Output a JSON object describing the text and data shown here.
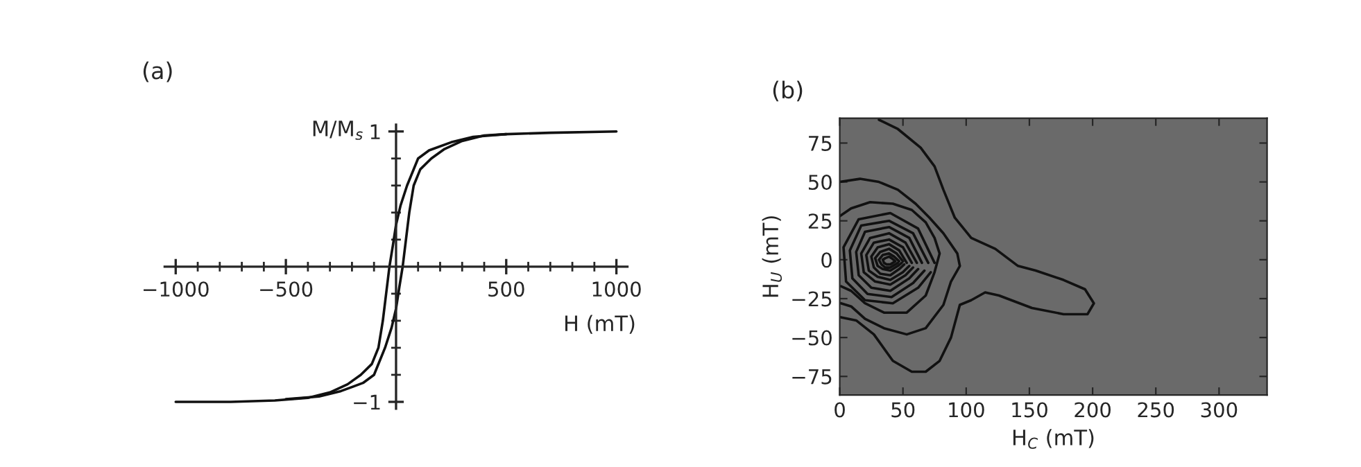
{
  "chart_data": [
    {
      "type": "line",
      "title": "(a)",
      "xlabel": "H (mT)",
      "ylabel": "M/M$_{s}$",
      "xlim": [
        -1050,
        1050
      ],
      "ylim": [
        -1.05,
        1.05
      ],
      "xticks": [
        {
          "value": -1000,
          "label": "−1000"
        },
        {
          "value": -900,
          "label": null
        },
        {
          "value": -800,
          "label": null
        },
        {
          "value": -700,
          "label": null
        },
        {
          "value": -600,
          "label": null
        },
        {
          "value": -500,
          "label": "−500"
        },
        {
          "value": -400,
          "label": null
        },
        {
          "value": -300,
          "label": null
        },
        {
          "value": -200,
          "label": null
        },
        {
          "value": -100,
          "label": null
        },
        {
          "value": 100,
          "label": null
        },
        {
          "value": 200,
          "label": null
        },
        {
          "value": 300,
          "label": null
        },
        {
          "value": 400,
          "label": null
        },
        500,
        {
          "value": 600,
          "label": null
        },
        {
          "value": 700,
          "label": null
        },
        {
          "value": 800,
          "label": null
        },
        {
          "value": 900,
          "label": null
        },
        1000
      ],
      "yticks": [
        {
          "value": -1,
          "label": "−1"
        },
        {
          "value": -0.8,
          "label": null
        },
        {
          "value": -0.6,
          "label": null
        },
        {
          "value": -0.4,
          "label": null
        },
        {
          "value": -0.2,
          "label": null
        },
        {
          "value": 0.2,
          "label": null
        },
        {
          "value": 0.4,
          "label": null
        },
        {
          "value": 0.6,
          "label": null
        },
        {
          "value": 0.8,
          "label": null
        },
        1
      ],
      "grid": false,
      "legend": false,
      "series": [
        {
          "color": "#111111",
          "x": [
            1000,
            700,
            500,
            350,
            250,
            150,
            100,
            50,
            20,
            0,
            -15,
            -30,
            -45,
            -60,
            -80,
            -110,
            -160,
            -220,
            -300,
            -400,
            -550,
            -750,
            -1000
          ],
          "values": [
            1.0,
            0.99,
            0.98,
            0.96,
            0.92,
            0.86,
            0.8,
            0.6,
            0.45,
            0.31,
            0.15,
            0,
            -0.2,
            -0.4,
            -0.6,
            -0.72,
            -0.8,
            -0.87,
            -0.93,
            -0.97,
            -0.99,
            -1.0,
            -1.0
          ]
        },
        {
          "color": "#111111",
          "x": [
            -500,
            -350,
            -250,
            -150,
            -100,
            -50,
            -20,
            0,
            15,
            30,
            45,
            60,
            80,
            110,
            160,
            220,
            300,
            400,
            500
          ],
          "values": [
            -0.98,
            -0.96,
            -0.92,
            -0.86,
            -0.8,
            -0.6,
            -0.45,
            -0.31,
            -0.15,
            0,
            0.2,
            0.4,
            0.6,
            0.72,
            0.8,
            0.87,
            0.93,
            0.97,
            0.98
          ]
        }
      ]
    },
    {
      "type": "line",
      "title": "(b)",
      "xlabel": "H$_{C}$ (mT)",
      "ylabel": "H$_{U}$ (mT)",
      "xlim": [
        0,
        338
      ],
      "ylim": [
        -87,
        91
      ],
      "xticks": [
        0,
        50,
        100,
        150,
        200,
        250,
        300
      ],
      "yticks": [
        {
          "value": -75,
          "label": "−75"
        },
        {
          "value": -50,
          "label": "−50"
        },
        {
          "value": -25,
          "label": "−25"
        },
        0,
        25,
        50,
        75
      ],
      "grid": false,
      "legend": false,
      "series": [
        {
          "color": "#111111",
          "x": [
            31,
            46,
            64,
            75,
            82,
            91,
            104,
            123,
            141,
            155,
            177,
            194,
            201,
            196,
            177,
            152,
            126,
            115,
            104,
            95,
            88,
            79,
            68,
            57,
            42,
            27,
            13,
            1
          ],
          "values": [
            90,
            84,
            72,
            60,
            45,
            27,
            14,
            7,
            -4,
            -7,
            -13,
            -19,
            -28,
            -35,
            -35,
            -31,
            -23,
            -21,
            -26,
            -29,
            -50,
            -65,
            -72,
            -72,
            -65,
            -48,
            -39,
            -37
          ]
        },
        {
          "color": "#111111",
          "x": [
            0,
            16,
            31,
            46,
            60,
            71,
            82,
            93,
            95,
            88,
            82,
            68,
            53,
            35,
            20,
            9,
            1
          ],
          "values": [
            50,
            52,
            50,
            45,
            36,
            27,
            17,
            4,
            -4,
            -14,
            -29,
            -44,
            -48,
            -44,
            -38,
            -30,
            -28
          ]
        },
        {
          "color": "#111111",
          "x": [
            0,
            9,
            24,
            42,
            57,
            68,
            75,
            79,
            75,
            68,
            53,
            35,
            20,
            9,
            1
          ],
          "values": [
            28,
            33,
            37,
            36,
            32,
            24,
            14,
            4,
            -8,
            -23,
            -34,
            -34,
            -28,
            -20,
            -17
          ]
        },
        {
          "color": "#111111",
          "x": [
            75,
            62,
            40,
            15,
            3,
            5,
            20,
            42,
            62,
            72
          ],
          "values": [
            -2,
            20,
            30,
            26,
            8,
            -14,
            -26,
            -28,
            -18,
            -8
          ]
        },
        {
          "color": "#111111",
          "x": [
            70,
            58,
            39,
            17,
            8,
            10,
            22,
            41,
            58,
            67
          ],
          "values": [
            -2,
            17,
            25,
            22,
            6,
            -12,
            -22,
            -24,
            -15,
            -7
          ]
        },
        {
          "color": "#111111",
          "x": [
            65,
            55,
            39,
            20,
            13,
            15,
            25,
            40,
            55,
            62
          ],
          "values": [
            -2,
            14,
            21,
            18,
            5,
            -10,
            -18,
            -20,
            -12,
            -6
          ]
        },
        {
          "color": "#111111",
          "x": [
            61,
            52,
            39,
            24,
            17,
            19,
            28,
            40,
            52,
            58
          ],
          "values": [
            -2,
            11,
            17,
            14,
            4,
            -8,
            -14,
            -16,
            -10,
            -5
          ]
        },
        {
          "color": "#111111",
          "x": [
            57,
            50,
            39,
            27,
            21,
            23,
            30,
            40,
            50,
            55
          ],
          "values": [
            -2,
            8,
            13,
            11,
            3,
            -7,
            -11,
            -13,
            -8,
            -4
          ]
        },
        {
          "color": "#111111",
          "x": [
            53,
            47,
            39,
            30,
            25,
            27,
            32,
            40,
            47,
            51
          ],
          "values": [
            -2,
            6,
            10,
            8,
            2,
            -5,
            -9,
            -10,
            -6,
            -3
          ]
        },
        {
          "color": "#111111",
          "x": [
            50,
            45,
            39,
            32,
            28,
            30,
            34,
            40,
            46,
            49
          ],
          "values": [
            -1,
            4,
            7,
            5,
            1,
            -4,
            -6,
            -7,
            -4,
            -2
          ]
        },
        {
          "color": "#111111",
          "x": [
            47,
            43,
            39,
            34,
            31,
            33,
            36,
            40,
            44,
            46
          ],
          "values": [
            -1,
            2,
            4,
            3,
            0,
            -3,
            -5,
            -5,
            -3,
            -2
          ]
        },
        {
          "color": "#111111",
          "x": [
            44,
            41,
            39,
            36,
            34,
            35,
            37,
            40,
            42,
            43
          ],
          "values": [
            -1,
            1,
            2,
            1,
            0,
            -2,
            -3,
            -3,
            -2,
            -1.5
          ]
        }
      ]
    }
  ]
}
